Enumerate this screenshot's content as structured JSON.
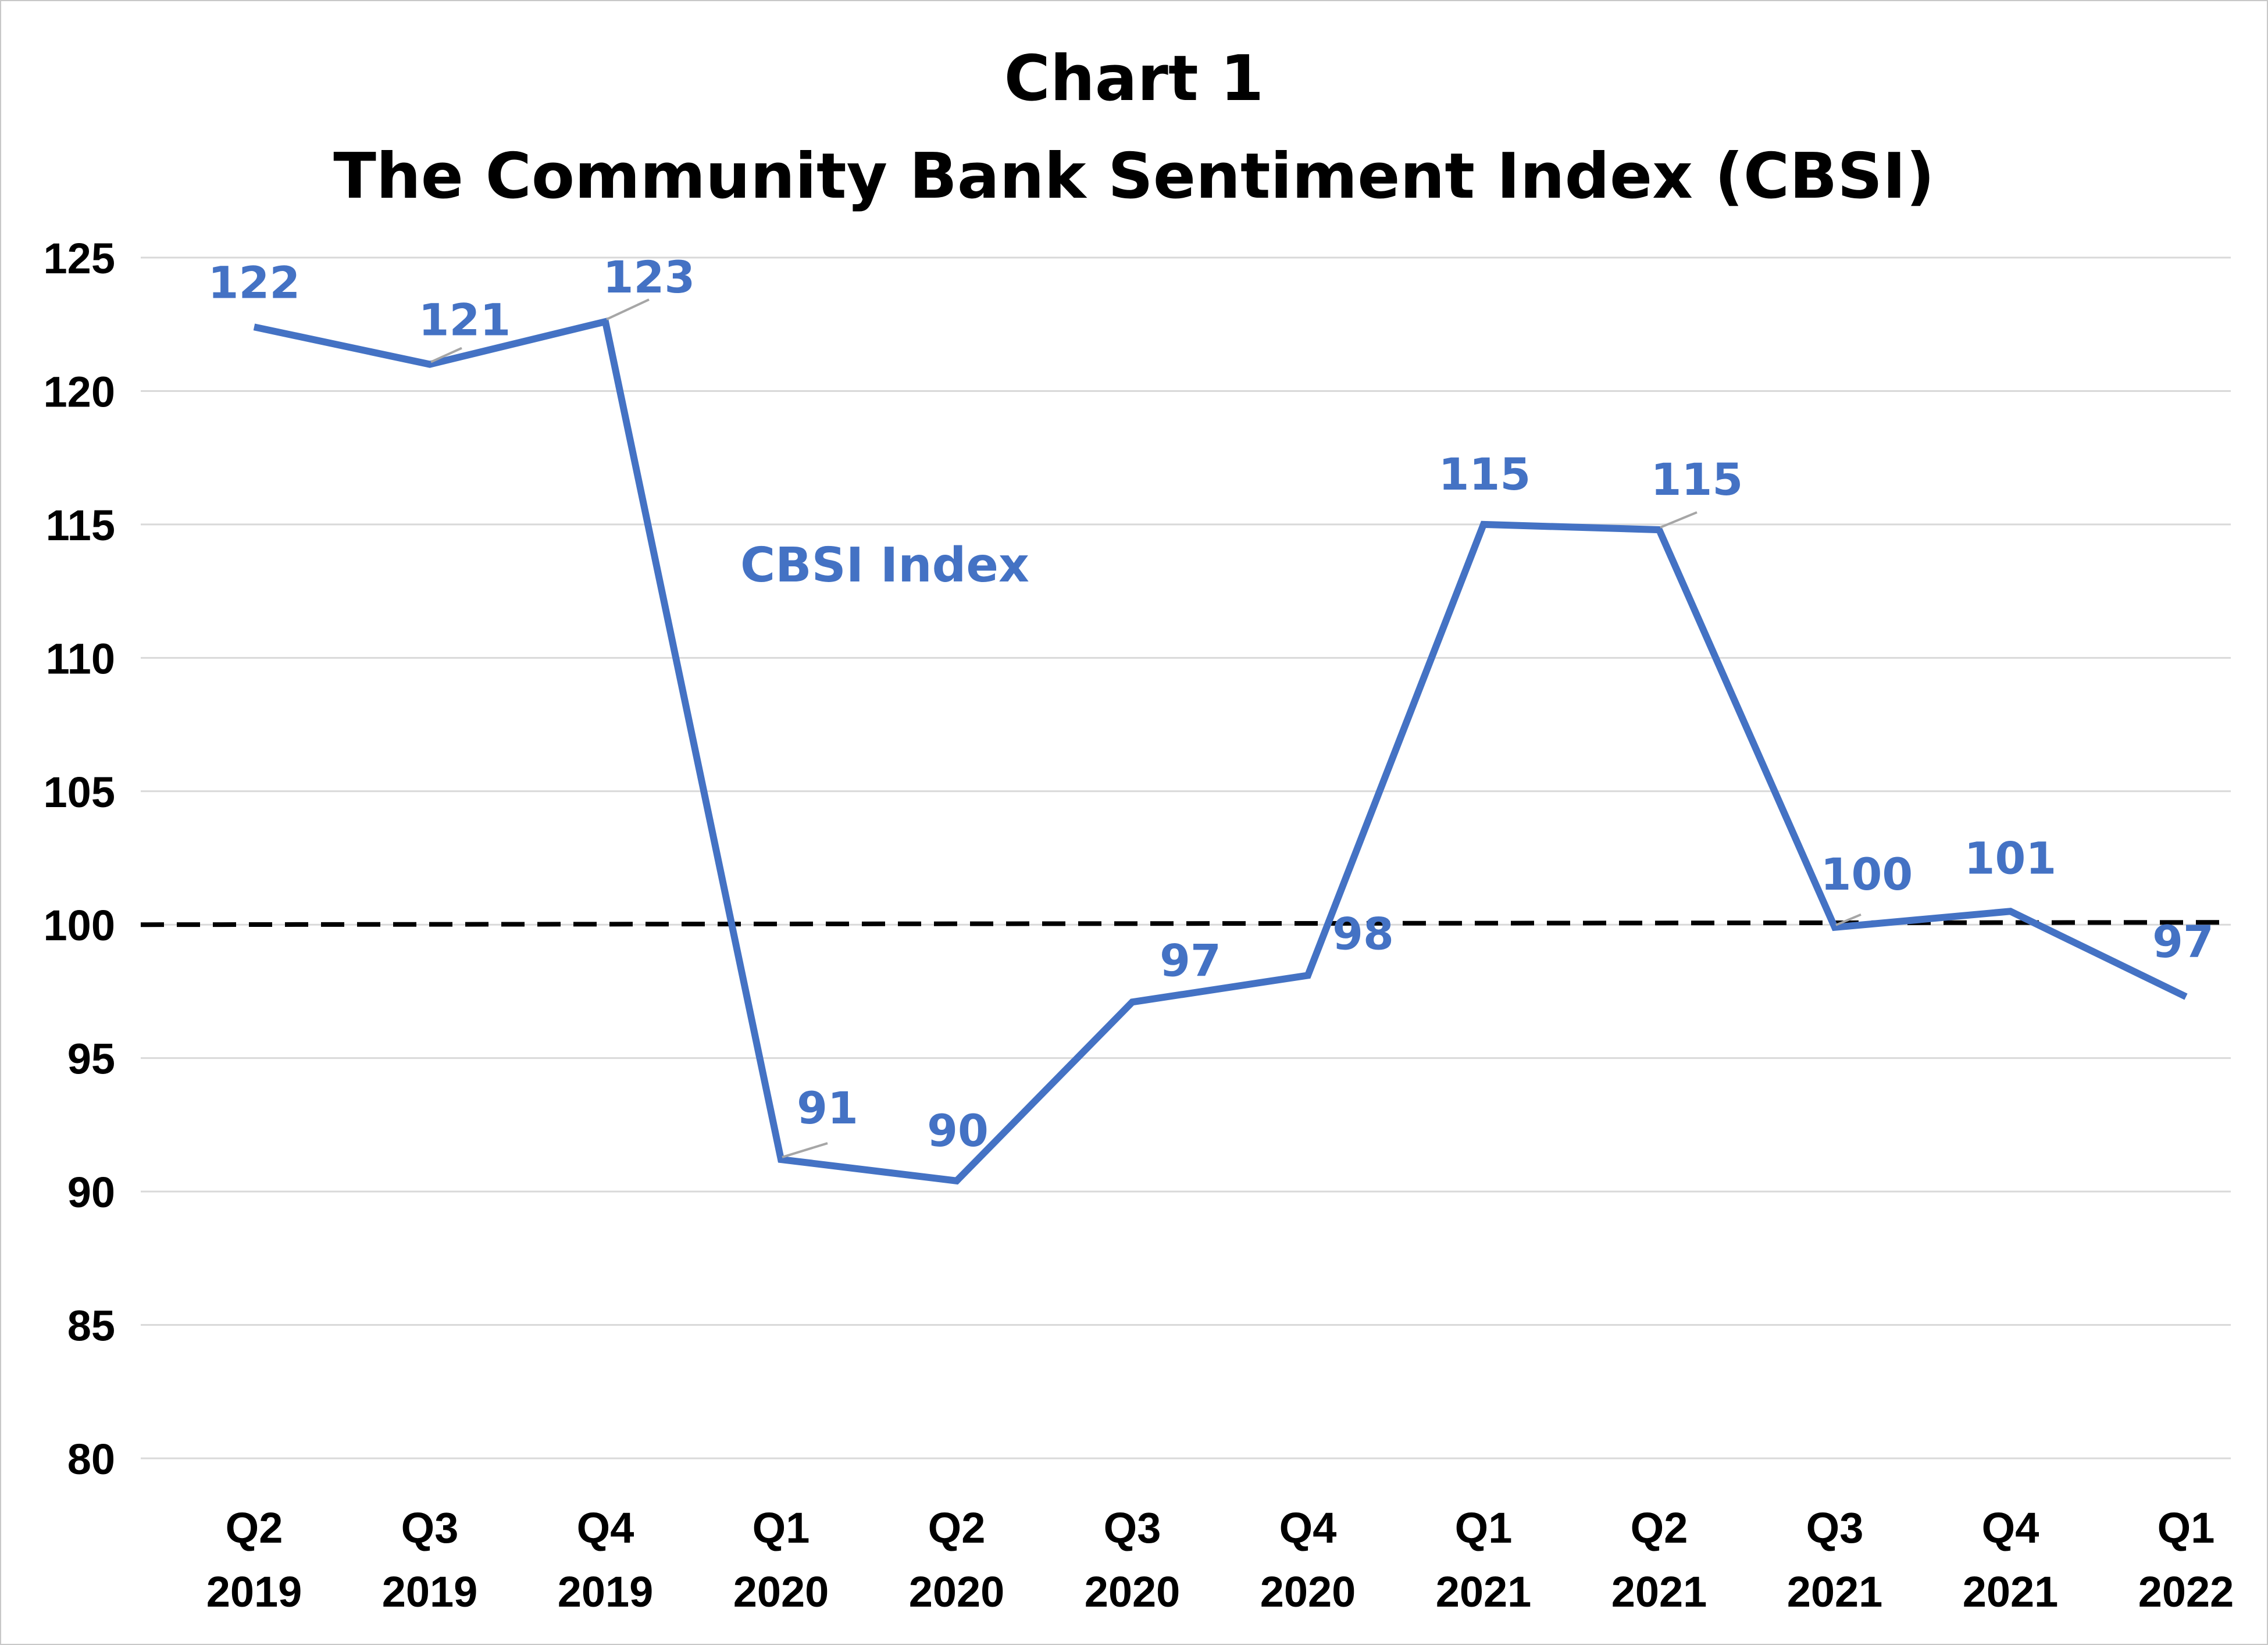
{
  "chart_data": {
    "type": "line",
    "title_line1": "Chart 1",
    "title_line2": "The Community Bank Sentiment Index (CBSI)",
    "categories": [
      [
        "Q2",
        "2019"
      ],
      [
        "Q3",
        "2019"
      ],
      [
        "Q4",
        "2019"
      ],
      [
        "Q1",
        "2020"
      ],
      [
        "Q2",
        "2020"
      ],
      [
        "Q3",
        "2020"
      ],
      [
        "Q4",
        "2020"
      ],
      [
        "Q1",
        "2021"
      ],
      [
        "Q2",
        "2021"
      ],
      [
        "Q3",
        "2021"
      ],
      [
        "Q4",
        "2021"
      ],
      [
        "Q1",
        "2022"
      ]
    ],
    "series": [
      {
        "name": "CBSI Index",
        "color": "#4472C4",
        "values": [
          122.4,
          121.0,
          122.6,
          91.2,
          90.4,
          97.1,
          98.1,
          115.0,
          114.8,
          99.9,
          100.5,
          97.3
        ],
        "data_labels": [
          "122",
          "121",
          "123",
          "91",
          "90",
          "97",
          "98",
          "115",
          "115",
          "100",
          "101",
          "97"
        ]
      }
    ],
    "reference_line": {
      "value": 100,
      "style": "dashed",
      "color": "#000000"
    },
    "ylim": [
      80,
      125
    ],
    "yticks": [
      80,
      85,
      90,
      95,
      100,
      105,
      110,
      115,
      120,
      125
    ],
    "grid": true,
    "gridline_color": "#d9d9d9",
    "xlabel": "",
    "ylabel": ""
  }
}
